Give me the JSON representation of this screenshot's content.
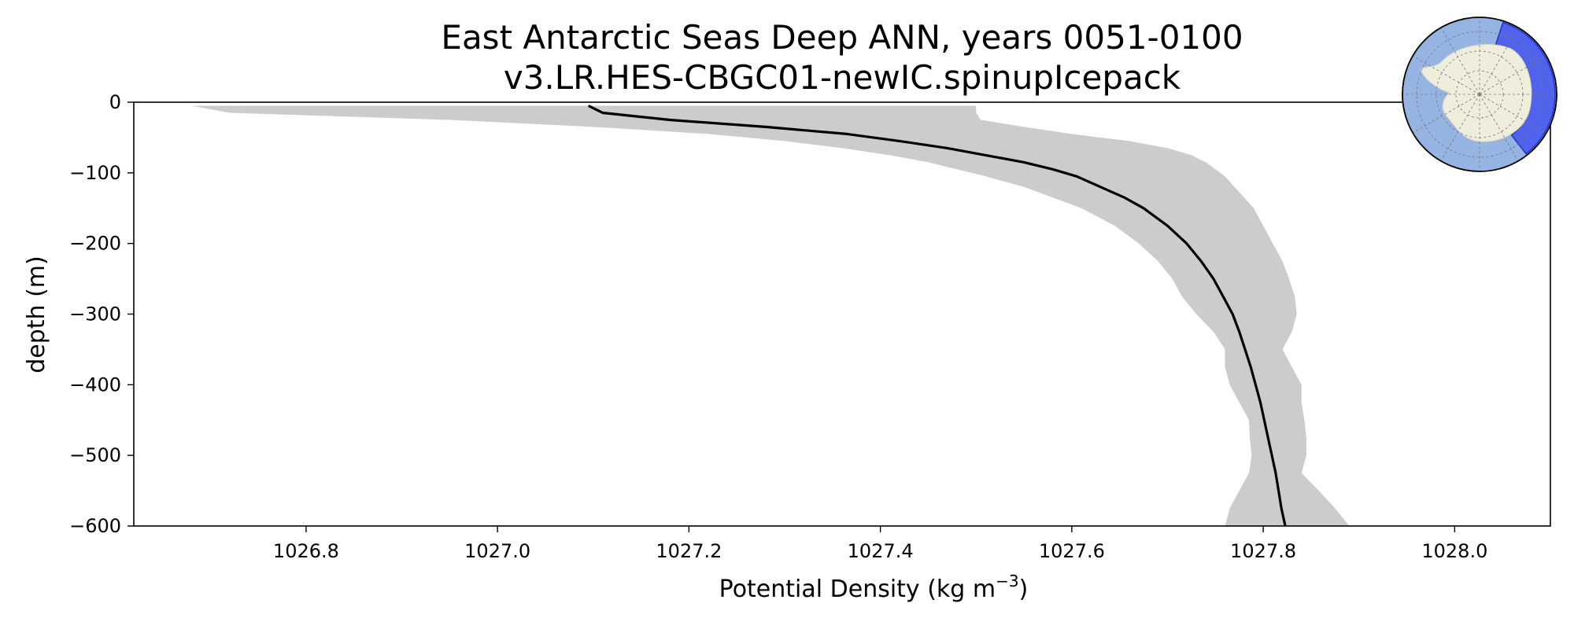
{
  "chart_data": {
    "type": "line",
    "title": "East Antarctic Seas Deep ANN, years 0051-0100",
    "subtitle": "v3.LR.HES-CBGC01-newIC.spinupIcepack",
    "xlabel": "Potential Density (kg m",
    "xlabel_sup": "−3",
    "xlabel_close": ")",
    "ylabel": "depth (m)",
    "xlim": [
      1026.62,
      1028.1
    ],
    "ylim": [
      -600,
      0
    ],
    "xticks": [
      1026.8,
      1027.0,
      1027.2,
      1027.4,
      1027.6,
      1027.8,
      1028.0
    ],
    "xtick_labels": [
      "1026.8",
      "1027.0",
      "1027.2",
      "1027.4",
      "1027.6",
      "1027.8",
      "1028.0"
    ],
    "yticks": [
      0,
      -100,
      -200,
      -300,
      -400,
      -500,
      -600
    ],
    "ytick_labels": [
      "0",
      "−100",
      "−200",
      "−300",
      "−400",
      "−500",
      "−600"
    ],
    "grid": false,
    "series": [
      {
        "color": "#000000",
        "depth": [
          -5,
          -15,
          -25,
          -35,
          -45,
          -55,
          -65,
          -75,
          -85,
          -95,
          -105,
          -120,
          -135,
          -150,
          -175,
          -200,
          -225,
          -250,
          -275,
          -300,
          -325,
          -350,
          -375,
          -400,
          -425,
          -450,
          -475,
          -500,
          -525,
          -550,
          -575,
          -600
        ],
        "x": [
          1027.095,
          1027.11,
          1027.18,
          1027.28,
          1027.365,
          1027.42,
          1027.47,
          1027.51,
          1027.55,
          1027.58,
          1027.605,
          1027.63,
          1027.655,
          1027.675,
          1027.7,
          1027.72,
          1027.735,
          1027.748,
          1027.758,
          1027.768,
          1027.775,
          1027.781,
          1027.787,
          1027.792,
          1027.797,
          1027.801,
          1027.805,
          1027.809,
          1027.813,
          1027.816,
          1027.819,
          1027.823
        ]
      }
    ],
    "band": {
      "color": "#cccccc",
      "depth": [
        -5,
        -15,
        -25,
        -35,
        -45,
        -55,
        -65,
        -75,
        -85,
        -95,
        -105,
        -120,
        -135,
        -150,
        -175,
        -200,
        -225,
        -250,
        -275,
        -300,
        -325,
        -350,
        -375,
        -400,
        -425,
        -450,
        -475,
        -500,
        -525,
        -550,
        -575,
        -600
      ],
      "lower": [
        1026.68,
        1026.72,
        1026.95,
        1027.1,
        1027.22,
        1027.3,
        1027.36,
        1027.41,
        1027.45,
        1027.48,
        1027.51,
        1027.55,
        1027.58,
        1027.61,
        1027.645,
        1027.67,
        1027.69,
        1027.705,
        1027.715,
        1027.73,
        1027.748,
        1027.76,
        1027.76,
        1027.765,
        1027.775,
        1027.785,
        1027.786,
        1027.788,
        1027.785,
        1027.775,
        1027.765,
        1027.76
      ],
      "upper": [
        1027.5,
        1027.5,
        1027.505,
        1027.55,
        1027.6,
        1027.66,
        1027.7,
        1027.725,
        1027.74,
        1027.75,
        1027.76,
        1027.77,
        1027.78,
        1027.79,
        1027.8,
        1027.81,
        1027.82,
        1027.827,
        1027.833,
        1027.835,
        1027.83,
        1027.82,
        1027.83,
        1027.84,
        1027.84,
        1027.843,
        1027.845,
        1027.845,
        1027.84,
        1027.858,
        1027.875,
        1027.89
      ]
    },
    "inset_map": {
      "ocean_color": "#95b4e2",
      "land_color": "#efeedc",
      "region_color": "#4455ee"
    }
  }
}
